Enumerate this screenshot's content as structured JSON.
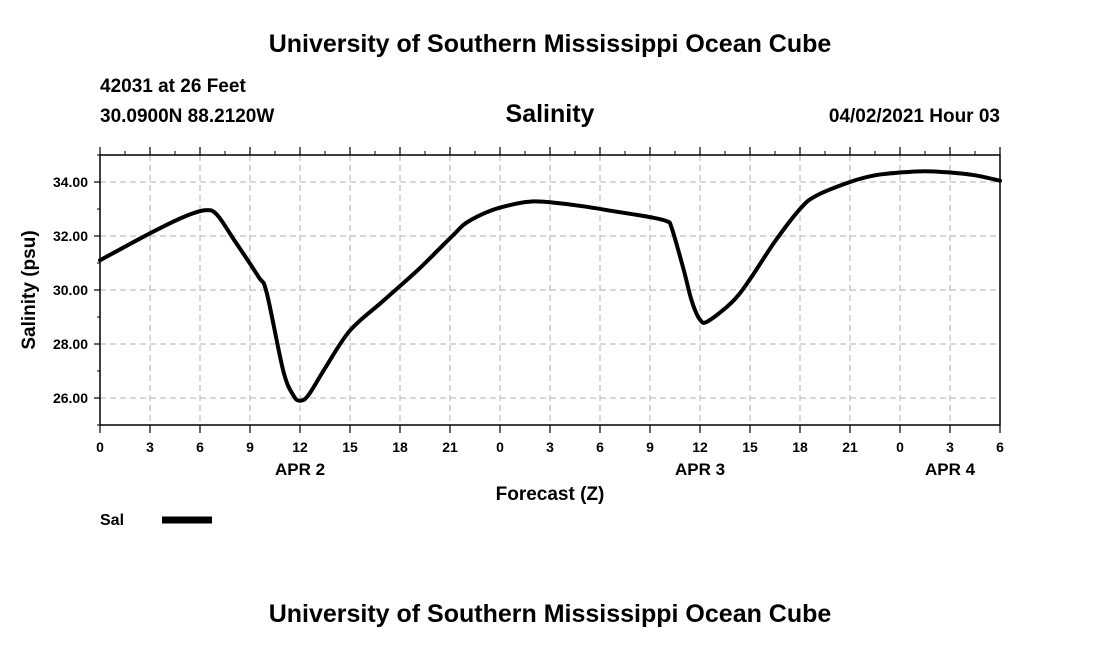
{
  "header": {
    "title": "University of Southern Mississippi Ocean Cube",
    "station": "42031 at 26 Feet",
    "position": "30.0900N  88.2120W",
    "datetime": "04/02/2021 Hour 03"
  },
  "footer": {
    "title": "University of Southern Mississippi Ocean Cube"
  },
  "chart_data": {
    "type": "line",
    "title": "Salinity",
    "xlabel": "Forecast (Z)",
    "ylabel": "Salinity (psu)",
    "xlim": [
      0,
      54
    ],
    "ylim": [
      25,
      35
    ],
    "y_ticks": [
      "26.00",
      "28.00",
      "30.00",
      "32.00",
      "34.00"
    ],
    "x_tick_labels": [
      "0",
      "3",
      "6",
      "9",
      "12",
      "15",
      "18",
      "21",
      "0",
      "3",
      "6",
      "9",
      "12",
      "15",
      "18",
      "21",
      "0",
      "3",
      "6"
    ],
    "date_labels": [
      {
        "label": "APR 2",
        "x": 12
      },
      {
        "label": "APR 3",
        "x": 36
      },
      {
        "label": "APR 4",
        "x": 51
      }
    ],
    "grid": true,
    "legend_position": "bottom-left",
    "series": [
      {
        "name": "Sal",
        "color": "#000000",
        "x": [
          0,
          3,
          5,
          6.3,
          7,
          8,
          9.5,
          10,
          11,
          11.6,
          12,
          12.5,
          13.5,
          15,
          17,
          19,
          20,
          21.3,
          22,
          23.5,
          25,
          26,
          27,
          29,
          31,
          33,
          34,
          34.3,
          35,
          35.5,
          36,
          36.5,
          38,
          39,
          40.5,
          42,
          43,
          45,
          46.5,
          48,
          49.5,
          51,
          52.5,
          54
        ],
        "values": [
          31.1,
          32.1,
          32.7,
          32.95,
          32.8,
          31.9,
          30.5,
          29.9,
          27.0,
          26.1,
          25.9,
          26.1,
          27.1,
          28.5,
          29.6,
          30.7,
          31.3,
          32.1,
          32.5,
          32.95,
          33.2,
          33.28,
          33.25,
          33.1,
          32.9,
          32.7,
          32.55,
          32.3,
          30.8,
          29.6,
          28.9,
          28.85,
          29.6,
          30.4,
          31.8,
          33.0,
          33.5,
          34.0,
          34.25,
          34.35,
          34.4,
          34.35,
          34.25,
          34.05
        ]
      }
    ]
  }
}
